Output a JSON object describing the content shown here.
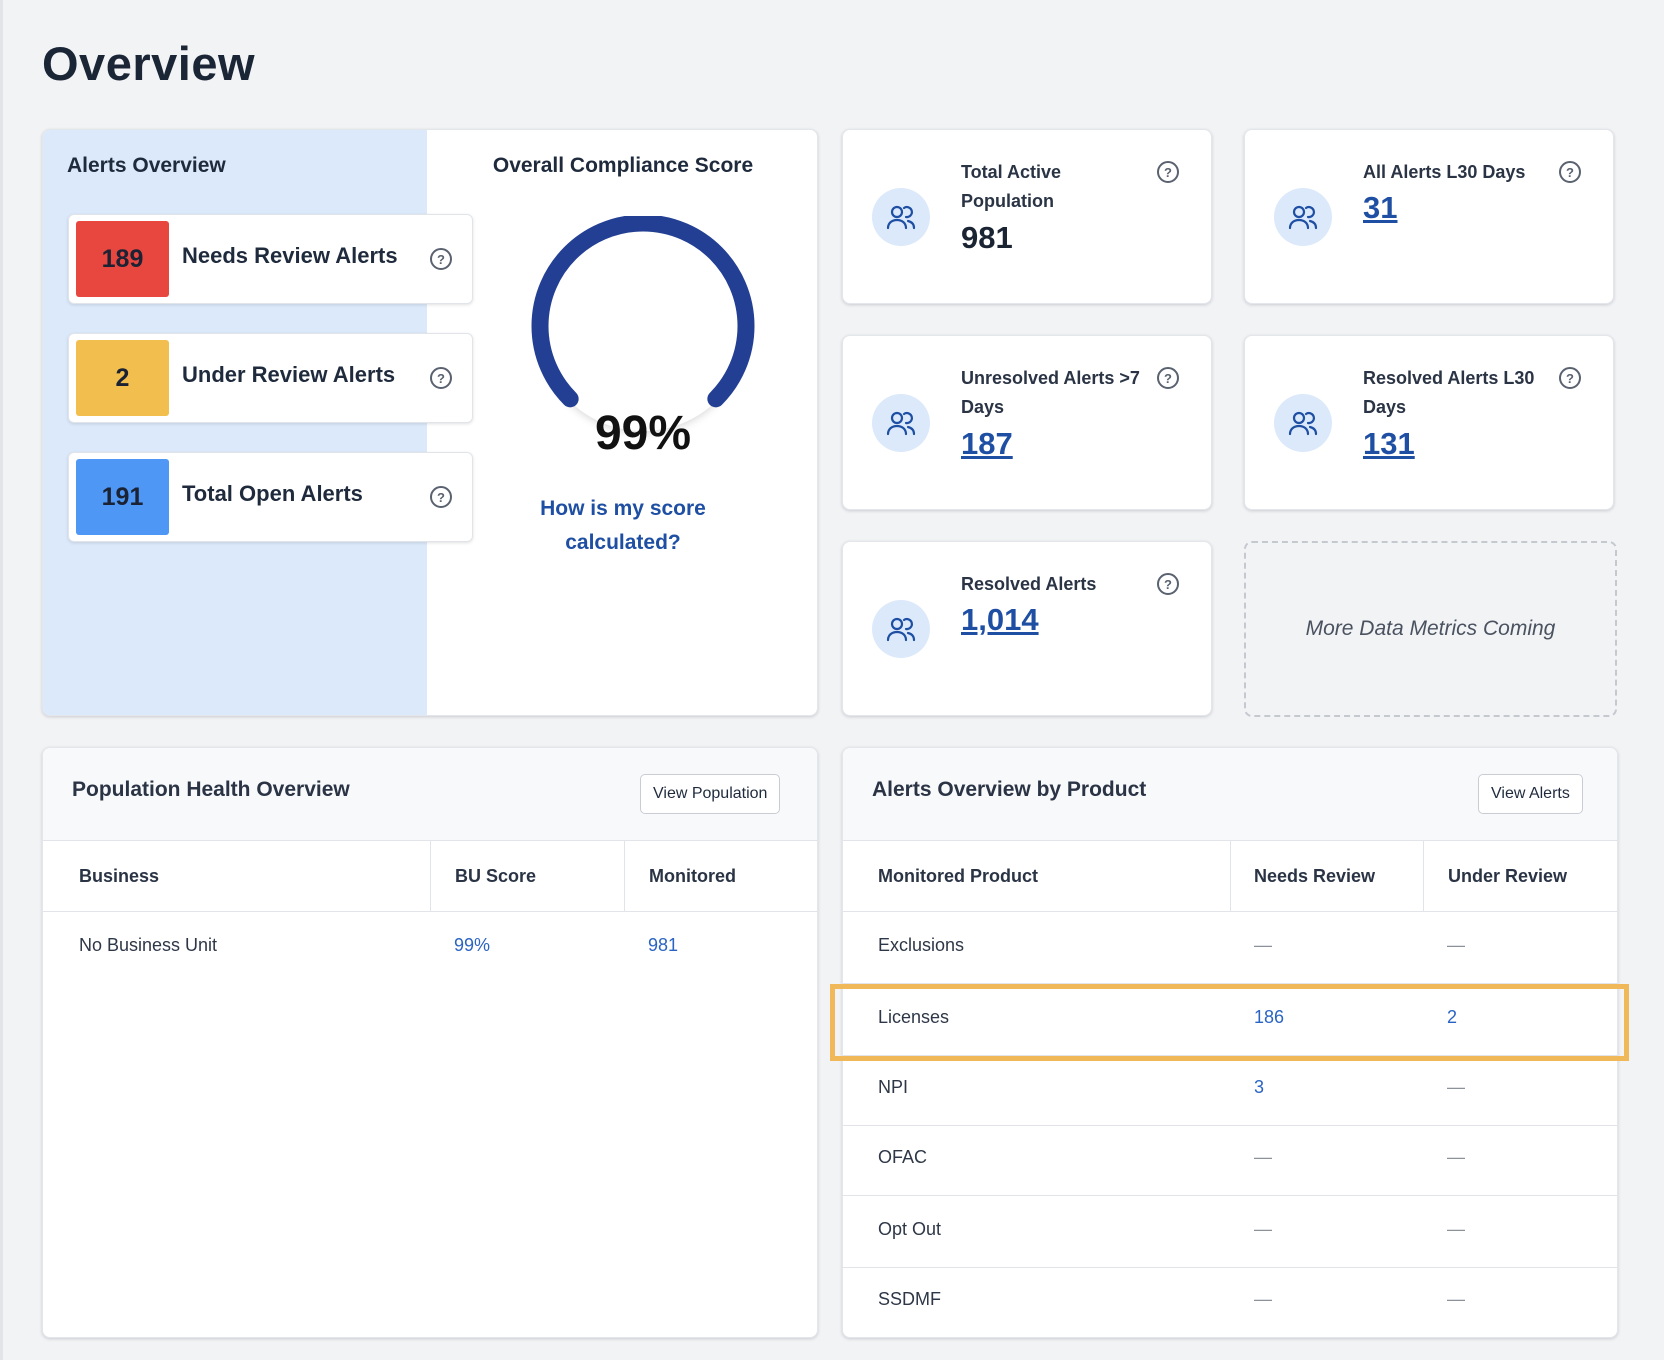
{
  "page_title": "Overview",
  "alerts_overview": {
    "title": "Alerts Overview",
    "items": [
      {
        "value": "189",
        "label": "Needs Review Alerts",
        "color": "#e8473f"
      },
      {
        "value": "2",
        "label": "Under Review Alerts",
        "color": "#f2bf4e"
      },
      {
        "value": "191",
        "label": "Total Open Alerts",
        "color": "#4e97f5"
      }
    ]
  },
  "compliance": {
    "title": "Overall Compliance Score",
    "score": "99%",
    "score_fraction": 0.99,
    "link_line1": "How is my score",
    "link_line2": "calculated?",
    "gauge_color": "#223f93"
  },
  "metrics": [
    {
      "label_line1": "Total Active",
      "label_line2": "Population",
      "value": "981"
    },
    {
      "label_line1": "All Alerts L30 Days",
      "label_line2": "",
      "value": "31"
    },
    {
      "label_line1": "Unresolved Alerts >7",
      "label_line2": "Days",
      "value": "187"
    },
    {
      "label_line1": "Resolved Alerts L30",
      "label_line2": "Days",
      "value": "131"
    },
    {
      "label_line1": "Resolved Alerts",
      "label_line2": "",
      "value": "1,014"
    }
  ],
  "more_metrics": "More Data Metrics Coming",
  "population_health": {
    "title": "Population Health Overview",
    "button": "View Population",
    "columns": [
      "Business",
      "BU Score",
      "Monitored"
    ],
    "rows": [
      [
        "No Business Unit",
        "99%",
        "981"
      ]
    ]
  },
  "alerts_by_product": {
    "title": "Alerts Overview by Product",
    "button": "View Alerts",
    "columns": [
      "Monitored Product",
      "Needs Review",
      "Under Review"
    ],
    "rows": [
      [
        "Exclusions",
        "—",
        "—"
      ],
      [
        "Licenses",
        "186",
        "2"
      ],
      [
        "NPI",
        "3",
        "—"
      ],
      [
        "OFAC",
        "—",
        "—"
      ],
      [
        "Opt Out",
        "—",
        "—"
      ],
      [
        "SSDMF",
        "—",
        "—"
      ]
    ],
    "highlighted_row": "Licenses"
  },
  "colors": {
    "link": "#1f4fa3",
    "highlight": "#f0b858",
    "icon_bg": "#dbe9fb"
  }
}
